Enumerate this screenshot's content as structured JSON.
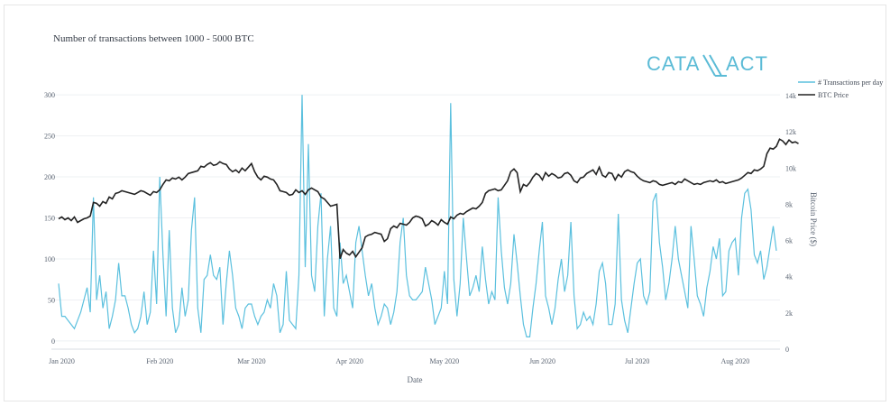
{
  "chart_data": {
    "type": "line",
    "title": "Number of transactions between 1000 - 5000 BTC",
    "xlabel": "Date",
    "ylabel_left": "",
    "ylabel_right": "Bitcoin Price ($)",
    "legend_position": "top-right",
    "grid": true,
    "x_ticks": [
      "Jan 2020",
      "Feb 2020",
      "Mar 2020",
      "Apr 2020",
      "May 2020",
      "Jun 2020",
      "Jul 2020",
      "Aug 2020"
    ],
    "y_left_ticks": [
      "0",
      "50",
      "100",
      "150",
      "200",
      "250",
      "300"
    ],
    "y_right_ticks": [
      "0",
      "2k",
      "4k",
      "6k",
      "8k",
      "10k",
      "12k",
      "14k"
    ],
    "ylim_left": [
      -10,
      310
    ],
    "ylim_right": [
      0,
      14500
    ],
    "series": [
      {
        "name": "# Transactions per day",
        "axis": "left",
        "color": "#5bc0de",
        "values": [
          70,
          30,
          30,
          25,
          20,
          15,
          25,
          35,
          50,
          65,
          35,
          175,
          50,
          80,
          40,
          60,
          15,
          30,
          50,
          95,
          55,
          55,
          40,
          20,
          10,
          15,
          30,
          60,
          20,
          35,
          110,
          45,
          200,
          105,
          30,
          135,
          40,
          10,
          20,
          65,
          30,
          50,
          135,
          175,
          40,
          10,
          75,
          80,
          105,
          80,
          75,
          90,
          20,
          70,
          110,
          80,
          40,
          30,
          15,
          40,
          45,
          45,
          30,
          20,
          30,
          35,
          50,
          40,
          70,
          55,
          10,
          20,
          85,
          25,
          20,
          15,
          80,
          300,
          90,
          240,
          80,
          60,
          140,
          180,
          30,
          100,
          140,
          40,
          30,
          120,
          70,
          80,
          60,
          40,
          120,
          140,
          110,
          80,
          55,
          70,
          40,
          20,
          30,
          45,
          40,
          20,
          35,
          60,
          120,
          150,
          80,
          55,
          50,
          50,
          55,
          60,
          90,
          70,
          50,
          20,
          30,
          40,
          85,
          45,
          290,
          75,
          30,
          70,
          150,
          100,
          55,
          65,
          80,
          60,
          115,
          75,
          45,
          60,
          50,
          175,
          110,
          65,
          45,
          70,
          130,
          95,
          55,
          20,
          5,
          5,
          40,
          70,
          110,
          145,
          55,
          40,
          20,
          40,
          75,
          100,
          60,
          80,
          145,
          55,
          15,
          20,
          35,
          25,
          30,
          20,
          45,
          85,
          95,
          70,
          20,
          20,
          45,
          155,
          50,
          25,
          10,
          40,
          70,
          95,
          100,
          55,
          45,
          60,
          170,
          180,
          120,
          90,
          50,
          70,
          100,
          140,
          100,
          80,
          60,
          40,
          140,
          100,
          55,
          45,
          30,
          65,
          85,
          115,
          100,
          125,
          55,
          60,
          110,
          120,
          125,
          80,
          150,
          180,
          185,
          160,
          105,
          95,
          110,
          75,
          90,
          115,
          140,
          110
        ]
      },
      {
        "name": "BTC Price",
        "axis": "right",
        "color": "#222222",
        "values": [
          7200,
          7300,
          7150,
          7250,
          7100,
          7300,
          7000,
          7100,
          7200,
          7250,
          7350,
          8100,
          8050,
          7900,
          8150,
          8050,
          8400,
          8300,
          8600,
          8650,
          8750,
          8700,
          8650,
          8600,
          8550,
          8650,
          8750,
          8700,
          8600,
          8500,
          8700,
          8650,
          8800,
          9100,
          9350,
          9300,
          9450,
          9400,
          9500,
          9350,
          9500,
          9700,
          9750,
          9800,
          9850,
          10100,
          10050,
          10200,
          10300,
          10150,
          10200,
          10350,
          10250,
          10200,
          9950,
          9800,
          9900,
          9750,
          10000,
          9850,
          10050,
          10250,
          9800,
          9500,
          9350,
          9550,
          9500,
          9400,
          9350,
          9100,
          8750,
          8700,
          8650,
          8500,
          8550,
          8800,
          8650,
          8750,
          8550,
          8800,
          8900,
          8800,
          8700,
          8400,
          8300,
          8100,
          7900,
          7950,
          8000,
          5000,
          5500,
          5300,
          5200,
          5400,
          5100,
          5350,
          5600,
          6200,
          6300,
          6350,
          6450,
          6400,
          6350,
          5950,
          6100,
          6650,
          6800,
          6700,
          6950,
          6900,
          6850,
          7000,
          7250,
          7350,
          7300,
          7200,
          6800,
          6900,
          7100,
          7000,
          6850,
          7150,
          7000,
          6900,
          7300,
          7200,
          7400,
          7500,
          7450,
          7600,
          7700,
          7800,
          7750,
          7900,
          8100,
          8600,
          8750,
          8800,
          8850,
          8750,
          8800,
          9050,
          9300,
          9800,
          9950,
          9750,
          8700,
          9100,
          9000,
          9200,
          9500,
          9700,
          9600,
          9350,
          9750,
          9550,
          9700,
          9600,
          9450,
          9500,
          9700,
          9750,
          9600,
          9300,
          9200,
          9450,
          9500,
          9700,
          9800,
          9900,
          9650,
          10050,
          9600,
          9500,
          9750,
          9700,
          9350,
          9650,
          9500,
          9800,
          9900,
          9800,
          9750,
          9550,
          9400,
          9300,
          9250,
          9200,
          9300,
          9250,
          9100,
          9050,
          9100,
          9150,
          9200,
          9100,
          9250,
          9200,
          9400,
          9300,
          9200,
          9100,
          9150,
          9100,
          9200,
          9250,
          9300,
          9250,
          9350,
          9200,
          9250,
          9150,
          9200,
          9250,
          9300,
          9350,
          9450,
          9600,
          9750,
          9700,
          9900,
          9850,
          9950,
          10100,
          10800,
          11100,
          11050,
          11200,
          11600,
          11500,
          11300,
          11550,
          11400,
          11450,
          11350
        ]
      }
    ]
  }
}
